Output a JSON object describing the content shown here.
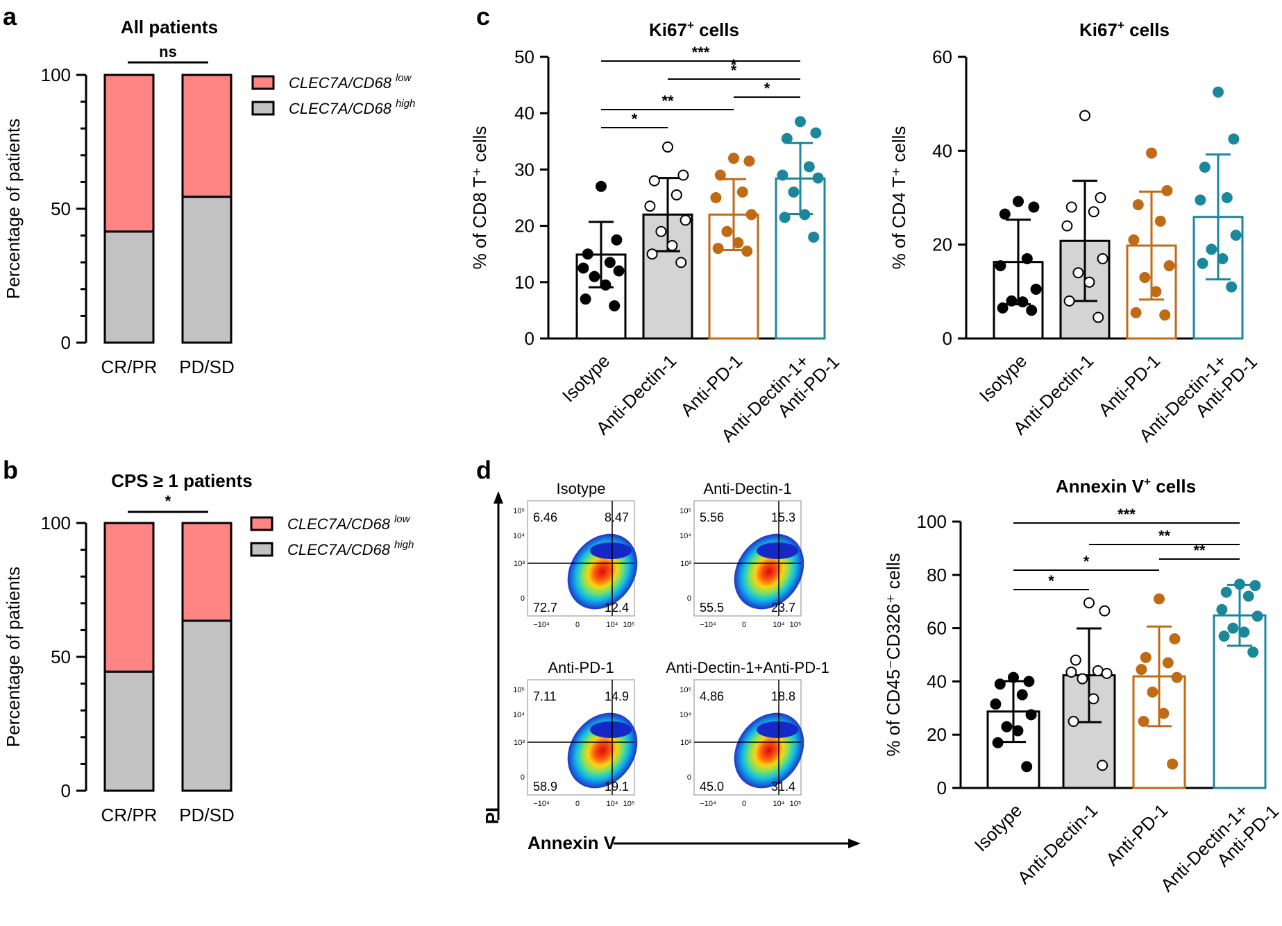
{
  "panels": {
    "a": {
      "label": "a"
    },
    "b": {
      "label": "b"
    },
    "c": {
      "label": "c"
    },
    "d": {
      "label": "d"
    }
  },
  "colors": {
    "low": "#ff8484",
    "high": "#c2c2c2",
    "isotype": "#000000",
    "dectin": "#000000",
    "pd1": "#c06a14",
    "combo": "#1b879a"
  },
  "chart_data": [
    {
      "id": "a",
      "type": "bar",
      "stacked": true,
      "title": "All patients",
      "ylabel": "Percentage of patients",
      "ylim": [
        0,
        100
      ],
      "yticks": [
        "0",
        "50",
        "100"
      ],
      "categories": [
        "CR/PR",
        "PD/SD"
      ],
      "series": [
        {
          "name": "CLEC7A/CD68",
          "sup": "low",
          "values": [
            58.5,
            45.5
          ]
        },
        {
          "name": "CLEC7A/CD68",
          "sup": "high",
          "values": [
            41.5,
            54.5
          ]
        }
      ],
      "significance": [
        "ns"
      ]
    },
    {
      "id": "b",
      "type": "bar",
      "stacked": true,
      "title": "CPS ≥ 1 patients",
      "ylabel": "Percentage of patients",
      "ylim": [
        0,
        100
      ],
      "yticks": [
        "0",
        "50",
        "100"
      ],
      "categories": [
        "CR/PR",
        "PD/SD"
      ],
      "series": [
        {
          "name": "CLEC7A/CD68",
          "sup": "low",
          "values": [
            55.5,
            36.5
          ]
        },
        {
          "name": "CLEC7A/CD68",
          "sup": "high",
          "values": [
            44.5,
            63.5
          ]
        }
      ],
      "significance": [
        "*"
      ]
    },
    {
      "id": "c-left",
      "type": "bar",
      "title_main": "Ki67",
      "title_sup": "+",
      "title_rest": " cells",
      "ylabel": "% of CD8 T⁺ cells",
      "ylim": [
        0,
        50
      ],
      "yticks": [
        "0",
        "10",
        "20",
        "30",
        "40",
        "50"
      ],
      "categories": [
        "Isotype",
        "Anti-Dectin-1",
        "Anti-PD-1",
        "Anti-Dectin-1+\nAnti-PD-1"
      ],
      "means": [
        14.9,
        22.0,
        22.0,
        28.4
      ],
      "sd": [
        5.8,
        6.5,
        6.3,
        6.3
      ],
      "points": [
        [
          27.0,
          17.5,
          15.0,
          13.5,
          12.5,
          12.0,
          11.0,
          9.5,
          7.0,
          5.8
        ],
        [
          34.0,
          29.0,
          28.0,
          25.5,
          23.5,
          21.0,
          19.0,
          16.5,
          15.0,
          13.5
        ],
        [
          32.0,
          31.5,
          29.0,
          26.0,
          25.0,
          22.0,
          19.0,
          17.0,
          16.0,
          15.5
        ],
        [
          38.5,
          36.5,
          35.5,
          30.5,
          29.0,
          28.5,
          26.0,
          22.0,
          21.5,
          18.0
        ]
      ],
      "significance": [
        "***",
        "*",
        "*",
        "**",
        "*",
        "*"
      ]
    },
    {
      "id": "c-right",
      "type": "bar",
      "title_main": "Ki67",
      "title_sup": "+",
      "title_rest": " cells",
      "ylabel": "% of CD4 T⁺ cells",
      "ylim": [
        0,
        60
      ],
      "yticks": [
        "0",
        "20",
        "40",
        "60"
      ],
      "categories": [
        "Isotype",
        "Anti-Dectin-1",
        "Anti-PD-1",
        "Anti-Dectin-1+\nAnti-PD-1"
      ],
      "means": [
        16.3,
        20.8,
        19.8,
        25.9
      ],
      "sd": [
        9.0,
        12.8,
        11.5,
        13.3
      ],
      "points": [
        [
          29.2,
          28.0,
          26.5,
          17.0,
          15.5,
          10.5,
          8.0,
          7.8,
          6.5,
          6.0
        ],
        [
          47.5,
          30.0,
          28.0,
          27.0,
          24.0,
          17.0,
          14.0,
          12.0,
          8.0,
          4.5
        ],
        [
          39.5,
          31.5,
          28.5,
          25.0,
          21.0,
          15.5,
          13.0,
          10.0,
          5.5,
          5.0
        ],
        [
          52.5,
          42.5,
          36.5,
          30.0,
          29.5,
          22.0,
          19.0,
          17.0,
          16.0,
          11.0
        ]
      ],
      "significance": []
    },
    {
      "id": "d-bar",
      "type": "bar",
      "title_main": "Annexin V",
      "title_sup": "+",
      "title_rest": " cells",
      "ylabel": "% of CD45⁻CD326⁺ cells",
      "ylim": [
        0,
        100
      ],
      "yticks": [
        "0",
        "20",
        "40",
        "60",
        "80",
        "100"
      ],
      "categories": [
        "Isotype",
        "Anti-Dectin-1",
        "Anti-PD-1",
        "Anti-Dectin-1+\nAnti-PD-1"
      ],
      "means": [
        28.7,
        42.3,
        41.9,
        64.8
      ],
      "sd": [
        11.4,
        17.6,
        18.7,
        11.4
      ],
      "points": [
        [
          41.5,
          40.0,
          39.0,
          35.0,
          31.5,
          27.5,
          23.0,
          21.5,
          17.0,
          8.0
        ],
        [
          69.5,
          66.5,
          48.0,
          44.0,
          43.5,
          43.0,
          41.0,
          33.5,
          25.0,
          8.5
        ],
        [
          71.0,
          56.0,
          49.0,
          47.0,
          44.5,
          41.5,
          36.0,
          28.0,
          25.0,
          9.0
        ],
        [
          76.5,
          76.0,
          73.5,
          72.0,
          67.0,
          64.5,
          60.0,
          58.5,
          57.0,
          51.0
        ]
      ],
      "significance": [
        "***",
        "**",
        "*",
        "**",
        "*"
      ]
    },
    {
      "id": "d-flow",
      "type": "scatter",
      "xlabel": "Annexin V",
      "ylabel": "PI",
      "xticks": [
        "−10⁴",
        "0",
        "10⁴",
        "10⁵"
      ],
      "yticks": [
        "0",
        "10³",
        "10⁴",
        "10⁵"
      ],
      "plots": [
        {
          "title": "Isotype",
          "q": [
            "6.46",
            "8.47",
            "72.7",
            "12.4"
          ]
        },
        {
          "title": "Anti-Dectin-1",
          "q": [
            "5.56",
            "15.3",
            "55.5",
            "23.7"
          ]
        },
        {
          "title": "Anti-PD-1",
          "q": [
            "7.11",
            "14.9",
            "58.9",
            "19.1"
          ]
        },
        {
          "title": "Anti-Dectin-1+Anti-PD-1",
          "q": [
            "4.86",
            "18.8",
            "45.0",
            "31.4"
          ]
        }
      ]
    }
  ]
}
